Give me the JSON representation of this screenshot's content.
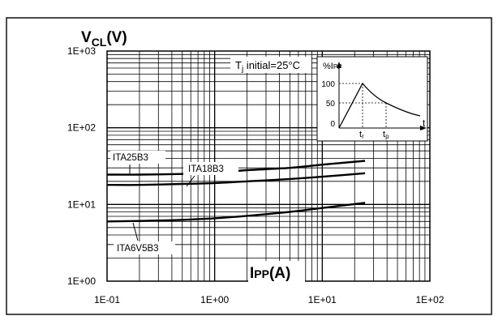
{
  "chart_data": {
    "type": "line",
    "x_scale": "log",
    "y_scale": "log",
    "xlim": [
      0.1,
      100
    ],
    "ylim": [
      1,
      1000
    ],
    "x_ticks": [
      0.1,
      1,
      10,
      100
    ],
    "y_ticks": [
      1,
      10,
      100,
      1000
    ],
    "x_tick_labels": [
      "1E-01",
      "1E+00",
      "1E+01",
      "1E+02"
    ],
    "y_tick_labels": [
      "1E+00",
      "1E+01",
      "1E+02",
      "1E+03"
    ],
    "ylabel_main": "V",
    "ylabel_sub": "CL",
    "ylabel_unit": "(V)",
    "xlabel_main": "I",
    "xlabel_sub": "PP",
    "xlabel_unit": "(A)",
    "grid": true,
    "condition": {
      "prefix": "T",
      "sub": "j",
      "text": " initial=25°C"
    },
    "series": [
      {
        "name": "ITA25B3",
        "x": [
          0.1,
          0.2,
          0.5,
          1,
          2,
          5,
          10,
          25
        ],
        "y": [
          24.5,
          24.5,
          25,
          26,
          28,
          30,
          33,
          37
        ]
      },
      {
        "name": "ITA18B3",
        "x": [
          0.1,
          0.2,
          0.5,
          1,
          2,
          5,
          10,
          25
        ],
        "y": [
          18,
          18,
          18.5,
          19,
          20,
          21.5,
          23,
          25.5
        ]
      },
      {
        "name": "ITA6V5B3",
        "x": [
          0.1,
          0.2,
          0.5,
          1,
          2,
          5,
          10,
          25
        ],
        "y": [
          6,
          6.1,
          6.3,
          6.6,
          7.1,
          8,
          9,
          10.5
        ]
      }
    ],
    "inset": {
      "y_label_prefix": "%I",
      "y_label_sub": "PP",
      "y_ticks": [
        0,
        50,
        100
      ],
      "x_label": "t",
      "tr_label": "t",
      "tr_sub": "r",
      "tp_label": "t",
      "tp_sub": "p"
    }
  }
}
